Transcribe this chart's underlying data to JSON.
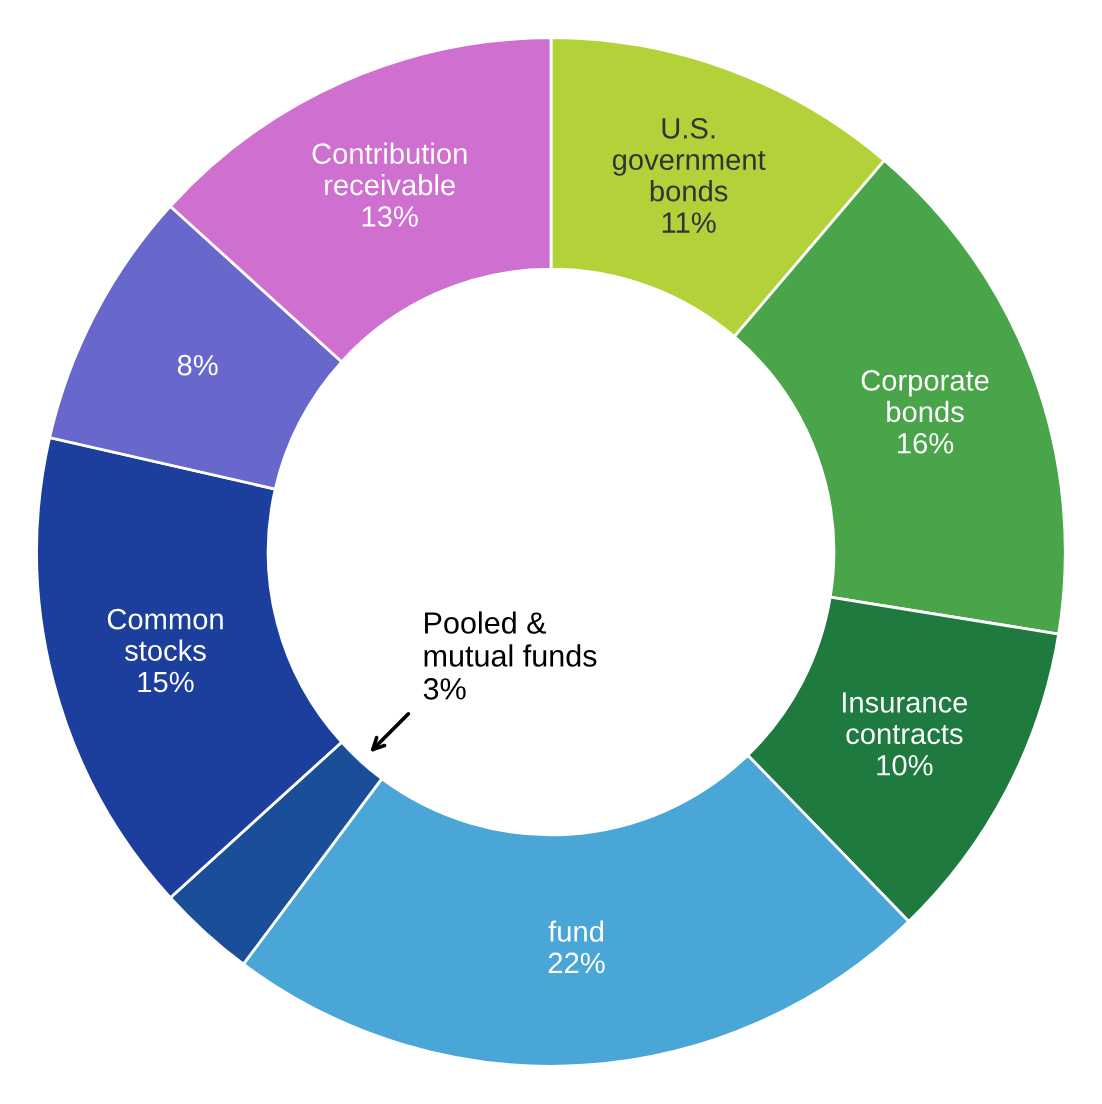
{
  "chart_data": {
    "type": "donut",
    "categories": [
      "U.S.\ngovernment\nbonds",
      "Corporate\nbonds",
      "Insurance\ncontracts",
      "fund",
      "Pooled &\nmutual funds",
      "Common\nstocks",
      null,
      "Contribution\nreceivable"
    ],
    "values": [
      11,
      16,
      10,
      22,
      3,
      15,
      8,
      13
    ],
    "value_labels": [
      "11%",
      "16%",
      "10%",
      "22%",
      "3%",
      "15%",
      "8%",
      "13%"
    ],
    "colors": [
      "#b3d23a",
      "#4aa54a",
      "#1f7a3f",
      "#4aa6d6",
      "#1b4e98",
      "#1c3f9e",
      "#6767cc",
      "#cf6fd0"
    ]
  }
}
